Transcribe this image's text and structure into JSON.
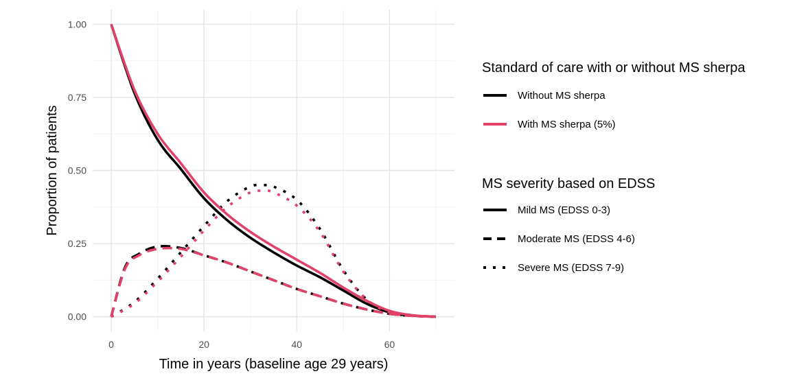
{
  "chart_data": {
    "type": "line",
    "xlabel": "Time in years (baseline age 29 years)",
    "ylabel": "Proportion of patients",
    "xlim": [
      -4,
      74
    ],
    "ylim": [
      -0.05,
      1.05
    ],
    "x_ticks": [
      0,
      20,
      40,
      60
    ],
    "x_tick_labels": [
      "0",
      "20",
      "40",
      "60"
    ],
    "y_ticks": [
      0,
      0.25,
      0.5,
      0.75,
      1.0
    ],
    "y_tick_labels": [
      "0.00",
      "0.25",
      "0.50",
      "0.75",
      "1.00"
    ],
    "grid": true,
    "legends": [
      {
        "title": "Standard of care with or without MS sherpa",
        "entries": [
          {
            "label": "Without MS sherpa",
            "color": "#000000",
            "style": "solid"
          },
          {
            "label": "With MS sherpa (5%)",
            "color": "#e0426a",
            "style": "solid"
          }
        ]
      },
      {
        "title": "MS severity based on EDSS",
        "entries": [
          {
            "label": "Mild MS (EDSS 0-3)",
            "color": "#000000",
            "style": "solid"
          },
          {
            "label": "Moderate MS (EDSS 4-6)",
            "color": "#000000",
            "style": "dashed"
          },
          {
            "label": "Severe MS (EDSS 7-9)",
            "color": "#000000",
            "style": "dotted"
          }
        ]
      }
    ],
    "series": [
      {
        "treatment": "Without MS sherpa",
        "severity": "Mild MS (EDSS 0-3)",
        "color": "#000000",
        "style": "solid",
        "x": [
          0,
          5,
          10,
          15,
          20,
          25,
          30,
          35,
          40,
          45,
          50,
          55,
          60,
          65,
          70
        ],
        "y": [
          1.0,
          0.765,
          0.605,
          0.505,
          0.405,
          0.33,
          0.27,
          0.22,
          0.175,
          0.135,
          0.09,
          0.045,
          0.015,
          0.004,
          0.0
        ]
      },
      {
        "treatment": "With MS sherpa (5%)",
        "severity": "Mild MS (EDSS 0-3)",
        "color": "#e0426a",
        "style": "solid",
        "x": [
          0,
          5,
          10,
          15,
          20,
          25,
          30,
          35,
          40,
          45,
          50,
          55,
          60,
          65,
          70
        ],
        "y": [
          1.0,
          0.775,
          0.625,
          0.525,
          0.425,
          0.35,
          0.29,
          0.24,
          0.195,
          0.15,
          0.1,
          0.055,
          0.02,
          0.005,
          0.0
        ]
      },
      {
        "treatment": "Without MS sherpa",
        "severity": "Moderate MS (EDSS 4-6)",
        "color": "#000000",
        "style": "dashed",
        "x": [
          0,
          3,
          6,
          10,
          15,
          20,
          25,
          30,
          35,
          40,
          45,
          50,
          55,
          60,
          65,
          70
        ],
        "y": [
          0.0,
          0.17,
          0.215,
          0.24,
          0.235,
          0.21,
          0.185,
          0.155,
          0.125,
          0.095,
          0.07,
          0.045,
          0.025,
          0.01,
          0.003,
          0.0
        ]
      },
      {
        "treatment": "With MS sherpa (5%)",
        "severity": "Moderate MS (EDSS 4-6)",
        "color": "#e0426a",
        "style": "dashed",
        "x": [
          0,
          3,
          6,
          10,
          15,
          20,
          25,
          30,
          35,
          40,
          45,
          50,
          55,
          60,
          65,
          70
        ],
        "y": [
          0.0,
          0.165,
          0.21,
          0.232,
          0.232,
          0.21,
          0.185,
          0.155,
          0.125,
          0.095,
          0.07,
          0.045,
          0.025,
          0.01,
          0.003,
          0.0
        ]
      },
      {
        "treatment": "Without MS sherpa",
        "severity": "Severe MS (EDSS 7-9)",
        "color": "#000000",
        "style": "dotted",
        "x": [
          0,
          5,
          10,
          15,
          20,
          25,
          30,
          33,
          35,
          40,
          45,
          50,
          55,
          60,
          65,
          70
        ],
        "y": [
          0.0,
          0.05,
          0.13,
          0.22,
          0.31,
          0.395,
          0.445,
          0.45,
          0.445,
          0.4,
          0.3,
          0.16,
          0.06,
          0.015,
          0.003,
          0.0
        ]
      },
      {
        "treatment": "With MS sherpa (5%)",
        "severity": "Severe MS (EDSS 7-9)",
        "color": "#e0426a",
        "style": "dotted",
        "x": [
          0,
          5,
          10,
          15,
          20,
          25,
          30,
          33,
          35,
          40,
          45,
          50,
          55,
          60,
          65,
          70
        ],
        "y": [
          0.0,
          0.045,
          0.12,
          0.205,
          0.295,
          0.375,
          0.425,
          0.43,
          0.425,
          0.38,
          0.29,
          0.155,
          0.06,
          0.015,
          0.003,
          0.0
        ]
      }
    ]
  }
}
